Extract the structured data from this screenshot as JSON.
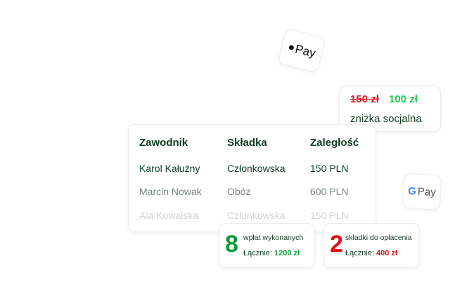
{
  "apple_pay": {
    "icon": "apple-icon",
    "label": "Pay"
  },
  "google_pay": {
    "icon": "google-g-icon",
    "g": "G",
    "label": "Pay"
  },
  "discount": {
    "old_price": "150 zł",
    "new_price": "100 zł",
    "label": "zniżka socjalna",
    "colors": {
      "old": "#e3191b",
      "new": "#1ec850"
    }
  },
  "table": {
    "headers": [
      "Zawodnik",
      "Składka",
      "Zaległość"
    ],
    "rows": [
      [
        "Karol Kałużny",
        "Członkowska",
        "150 PLN"
      ],
      [
        "Marcin Nowak",
        "Obóz",
        "600 PLN"
      ],
      [
        "Ala Kowalska",
        "Członkowska",
        "150 PLN"
      ]
    ]
  },
  "stats": [
    {
      "number": "8",
      "label": "wpłat wykonanych",
      "total_label": "Łącznie:",
      "total": "1200 zł",
      "color": "#0f9a3c"
    },
    {
      "number": "2",
      "label": "składki do opłacenia",
      "total_label": "Łącznie:",
      "total": "400 zł",
      "color": "#dd1111"
    }
  ]
}
